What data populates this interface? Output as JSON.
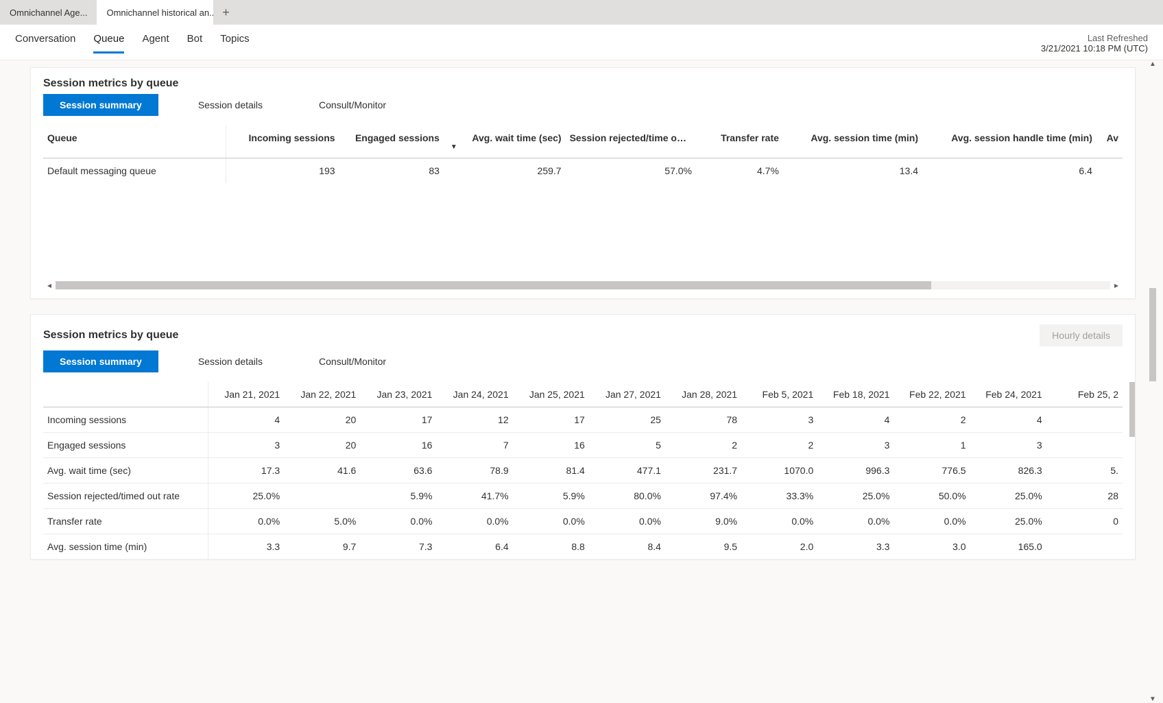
{
  "browser_tabs": {
    "inactive_label": "Omnichannel Age...",
    "active_label": "Omnichannel historical an..."
  },
  "subnav": {
    "items": [
      "Conversation",
      "Queue",
      "Agent",
      "Bot",
      "Topics"
    ],
    "active_index": 1
  },
  "refreshed": {
    "label": "Last Refreshed",
    "value": "3/21/2021 10:18 PM (UTC)"
  },
  "card1": {
    "title": "Session metrics by queue",
    "pill_tabs": [
      "Session summary",
      "Session details",
      "Consult/Monitor"
    ],
    "pill_active": 0,
    "columns": [
      "Queue",
      "Incoming sessions",
      "Engaged sessions",
      "Avg. wait time (sec)",
      "Session rejected/time out rate",
      "Transfer rate",
      "Avg. session time (min)",
      "Avg. session handle time (min)",
      "Av"
    ],
    "row": {
      "queue": "Default messaging queue",
      "incoming": "193",
      "engaged": "83",
      "wait": "259.7",
      "rejected": "57.0%",
      "transfer": "4.7%",
      "session_time": "13.4",
      "handle_time": "6.4",
      "extra": ""
    }
  },
  "card2": {
    "title": "Session metrics by queue",
    "hourly_label": "Hourly details",
    "pill_tabs": [
      "Session summary",
      "Session details",
      "Consult/Monitor"
    ],
    "pill_active": 0,
    "date_columns": [
      "Jan 21, 2021",
      "Jan 22, 2021",
      "Jan 23, 2021",
      "Jan 24, 2021",
      "Jan 25, 2021",
      "Jan 27, 2021",
      "Jan 28, 2021",
      "Feb 5, 2021",
      "Feb 18, 2021",
      "Feb 22, 2021",
      "Feb 24, 2021",
      "Feb 25, 2"
    ],
    "rows": [
      {
        "label": "Incoming sessions",
        "v": [
          "4",
          "20",
          "17",
          "12",
          "17",
          "25",
          "78",
          "3",
          "4",
          "2",
          "4",
          ""
        ]
      },
      {
        "label": "Engaged sessions",
        "v": [
          "3",
          "20",
          "16",
          "7",
          "16",
          "5",
          "2",
          "2",
          "3",
          "1",
          "3",
          ""
        ]
      },
      {
        "label": "Avg. wait time (sec)",
        "v": [
          "17.3",
          "41.6",
          "63.6",
          "78.9",
          "81.4",
          "477.1",
          "231.7",
          "1070.0",
          "996.3",
          "776.5",
          "826.3",
          "5."
        ]
      },
      {
        "label": "Session rejected/timed out rate",
        "v": [
          "25.0%",
          "",
          "5.9%",
          "41.7%",
          "5.9%",
          "80.0%",
          "97.4%",
          "33.3%",
          "25.0%",
          "50.0%",
          "25.0%",
          "28"
        ]
      },
      {
        "label": "Transfer rate",
        "v": [
          "0.0%",
          "5.0%",
          "0.0%",
          "0.0%",
          "0.0%",
          "0.0%",
          "9.0%",
          "0.0%",
          "0.0%",
          "0.0%",
          "25.0%",
          "0"
        ]
      },
      {
        "label": "Avg. session time (min)",
        "v": [
          "3.3",
          "9.7",
          "7.3",
          "6.4",
          "8.8",
          "8.4",
          "9.5",
          "2.0",
          "3.3",
          "3.0",
          "165.0",
          ""
        ]
      }
    ]
  },
  "colors": {
    "primary": "#0078d4",
    "tab_bg": "#e1dfdd",
    "border": "#edebe9",
    "scroll": "#c8c6c4"
  }
}
